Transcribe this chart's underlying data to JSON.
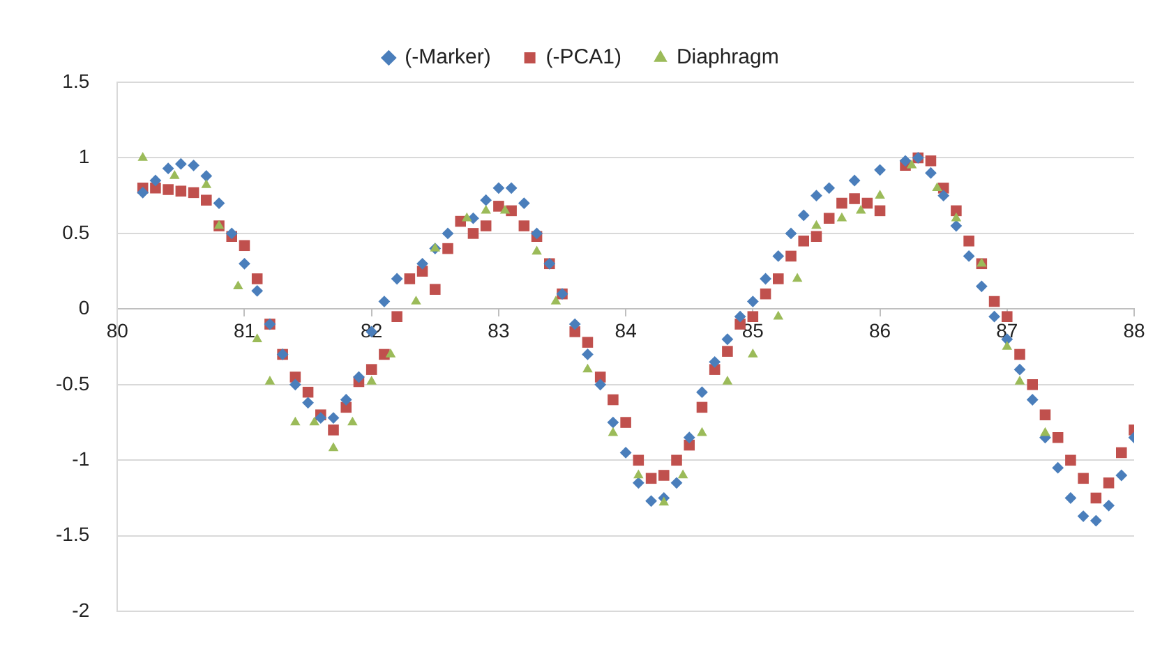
{
  "chart_data": {
    "type": "scatter",
    "xlim": [
      80,
      88
    ],
    "xticks": [
      80,
      81,
      82,
      83,
      84,
      85,
      86,
      87,
      88
    ],
    "ylim": [
      -2,
      1.5
    ],
    "yticks": [
      -2,
      -1.5,
      -1,
      -0.5,
      0,
      0.5,
      1,
      1.5
    ],
    "grid": "y",
    "legend": "top",
    "series": [
      {
        "name": "(-Marker)",
        "color": "#4a7ebb",
        "marker": "diamond",
        "x": [
          80.2,
          80.3,
          80.4,
          80.5,
          80.6,
          80.7,
          80.8,
          80.9,
          81.0,
          81.1,
          81.2,
          81.3,
          81.4,
          81.5,
          81.6,
          81.7,
          81.8,
          81.9,
          82.0,
          82.1,
          82.2,
          82.4,
          82.5,
          82.6,
          82.8,
          82.9,
          83.0,
          83.1,
          83.2,
          83.3,
          83.4,
          83.5,
          83.6,
          83.7,
          83.8,
          83.9,
          84.0,
          84.1,
          84.2,
          84.3,
          84.4,
          84.5,
          84.6,
          84.7,
          84.8,
          84.9,
          85.0,
          85.1,
          85.2,
          85.3,
          85.4,
          85.5,
          85.6,
          85.8,
          86.0,
          86.2,
          86.3,
          86.4,
          86.5,
          86.6,
          86.7,
          86.8,
          86.9,
          87.0,
          87.1,
          87.2,
          87.3,
          87.4,
          87.5,
          87.6,
          87.7,
          87.8,
          87.9,
          88.0
        ],
        "values": [
          0.77,
          0.85,
          0.93,
          0.96,
          0.95,
          0.88,
          0.7,
          0.5,
          0.3,
          0.12,
          -0.1,
          -0.3,
          -0.5,
          -0.62,
          -0.72,
          -0.72,
          -0.6,
          -0.45,
          -0.15,
          0.05,
          0.2,
          0.3,
          0.4,
          0.5,
          0.6,
          0.72,
          0.8,
          0.8,
          0.7,
          0.5,
          0.3,
          0.1,
          -0.1,
          -0.3,
          -0.5,
          -0.75,
          -0.95,
          -1.15,
          -1.27,
          -1.25,
          -1.15,
          -0.85,
          -0.55,
          -0.35,
          -0.2,
          -0.05,
          0.05,
          0.2,
          0.35,
          0.5,
          0.62,
          0.75,
          0.8,
          0.85,
          0.92,
          0.98,
          1.0,
          0.9,
          0.75,
          0.55,
          0.35,
          0.15,
          -0.05,
          -0.2,
          -0.4,
          -0.6,
          -0.85,
          -1.05,
          -1.25,
          -1.37,
          -1.4,
          -1.3,
          -1.1,
          -0.85
        ]
      },
      {
        "name": "(-PCA1)",
        "color": "#c0504d",
        "marker": "square",
        "x": [
          80.2,
          80.3,
          80.4,
          80.5,
          80.6,
          80.7,
          80.8,
          80.9,
          81.0,
          81.1,
          81.2,
          81.3,
          81.4,
          81.5,
          81.6,
          81.7,
          81.8,
          81.9,
          82.0,
          82.1,
          82.2,
          82.3,
          82.4,
          82.5,
          82.6,
          82.7,
          82.8,
          82.9,
          83.0,
          83.1,
          83.2,
          83.3,
          83.4,
          83.5,
          83.6,
          83.7,
          83.8,
          83.9,
          84.0,
          84.1,
          84.2,
          84.3,
          84.4,
          84.5,
          84.6,
          84.7,
          84.8,
          84.9,
          85.0,
          85.1,
          85.2,
          85.3,
          85.4,
          85.5,
          85.6,
          85.7,
          85.8,
          85.9,
          86.0,
          86.2,
          86.3,
          86.4,
          86.5,
          86.6,
          86.7,
          86.8,
          86.9,
          87.0,
          87.1,
          87.2,
          87.3,
          87.4,
          87.5,
          87.6,
          87.7,
          87.8,
          87.9,
          88.0
        ],
        "values": [
          0.8,
          0.8,
          0.79,
          0.78,
          0.77,
          0.72,
          0.55,
          0.48,
          0.42,
          0.2,
          -0.1,
          -0.3,
          -0.45,
          -0.55,
          -0.7,
          -0.8,
          -0.65,
          -0.48,
          -0.4,
          -0.3,
          -0.05,
          0.2,
          0.25,
          0.13,
          0.4,
          0.58,
          0.5,
          0.55,
          0.68,
          0.65,
          0.55,
          0.48,
          0.3,
          0.1,
          -0.15,
          -0.22,
          -0.45,
          -0.6,
          -0.75,
          -1.0,
          -1.12,
          -1.1,
          -1.0,
          -0.9,
          -0.65,
          -0.4,
          -0.28,
          -0.1,
          -0.05,
          0.1,
          0.2,
          0.35,
          0.45,
          0.48,
          0.6,
          0.7,
          0.73,
          0.7,
          0.65,
          0.95,
          1.0,
          0.98,
          0.8,
          0.65,
          0.45,
          0.3,
          0.05,
          -0.05,
          -0.3,
          -0.5,
          -0.7,
          -0.85,
          -1.0,
          -1.12,
          -1.25,
          -1.15,
          -0.95,
          -0.8
        ]
      },
      {
        "name": "Diaphragm",
        "color": "#9bbb59",
        "marker": "triangle",
        "x": [
          80.2,
          80.45,
          80.7,
          80.8,
          80.95,
          81.1,
          81.2,
          81.4,
          81.55,
          81.7,
          81.85,
          82.0,
          82.15,
          82.35,
          82.5,
          82.75,
          82.9,
          83.05,
          83.3,
          83.45,
          83.7,
          83.9,
          84.1,
          84.3,
          84.45,
          84.6,
          84.8,
          85.0,
          85.2,
          85.35,
          85.5,
          85.7,
          85.85,
          86.0,
          86.25,
          86.45,
          86.6,
          86.8,
          87.0,
          87.1,
          87.3
        ],
        "values": [
          1.0,
          0.88,
          0.82,
          0.55,
          0.15,
          -0.2,
          -0.48,
          -0.75,
          -0.75,
          -0.92,
          -0.75,
          -0.48,
          -0.3,
          0.05,
          0.4,
          0.6,
          0.65,
          0.65,
          0.38,
          0.05,
          -0.4,
          -0.82,
          -1.1,
          -1.28,
          -1.1,
          -0.82,
          -0.48,
          -0.3,
          -0.05,
          0.2,
          0.55,
          0.6,
          0.65,
          0.75,
          0.95,
          0.8,
          0.6,
          0.3,
          -0.25,
          -0.48,
          -0.82
        ]
      }
    ]
  }
}
